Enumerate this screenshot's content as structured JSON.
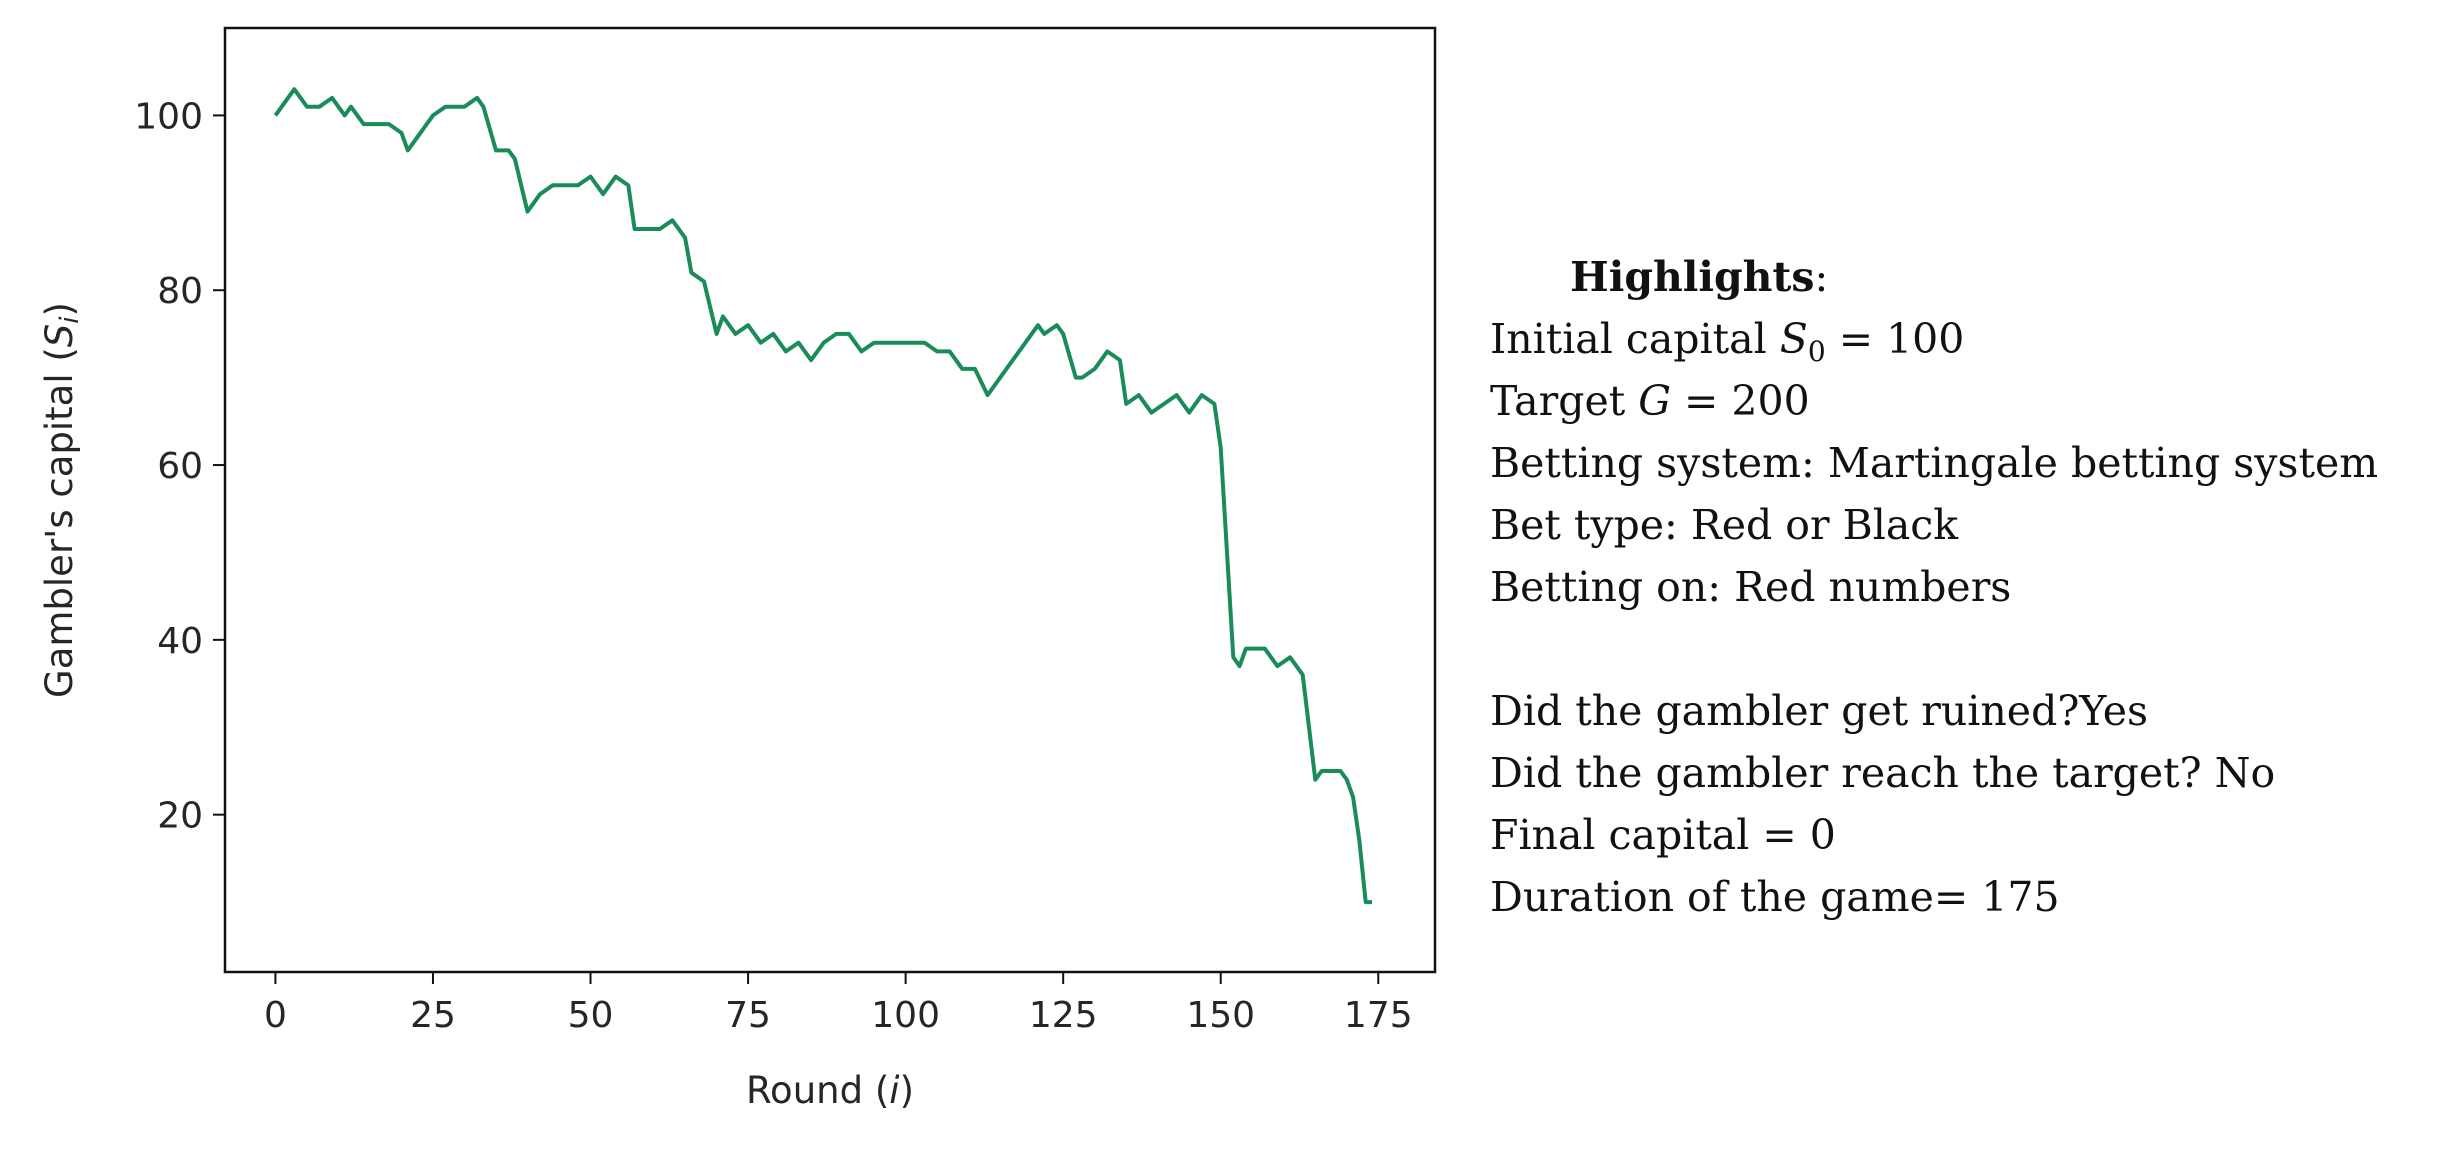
{
  "chart_data": {
    "type": "line",
    "xlabel": "Round (i)",
    "ylabel": "Gambler's capital (S_i)",
    "xlim": [
      -8,
      184
    ],
    "ylim": [
      2,
      110
    ],
    "xticks": [
      0,
      25,
      50,
      75,
      100,
      125,
      150,
      175
    ],
    "yticks": [
      20,
      40,
      60,
      80,
      100
    ],
    "grid": false,
    "line_color": "#1a8c5a",
    "series": [
      {
        "x": [
          0,
          3,
          5,
          7,
          9,
          11,
          12,
          14,
          15,
          17,
          18,
          20,
          21,
          23,
          25,
          27,
          28,
          30,
          32,
          33,
          35,
          37,
          38,
          40,
          42,
          44,
          46,
          48,
          50,
          52,
          54,
          56,
          57,
          59,
          61,
          63,
          65,
          66,
          68,
          70,
          71,
          73,
          75,
          77,
          79,
          81,
          83,
          85,
          87,
          89,
          91,
          93,
          95,
          97,
          99,
          101,
          103,
          105,
          107,
          109,
          111,
          113,
          115,
          117,
          119,
          121,
          122,
          124,
          125,
          127,
          128,
          130,
          132,
          134,
          135,
          137,
          139,
          141,
          143,
          145,
          147,
          149,
          150,
          151,
          152,
          153,
          154,
          155,
          157,
          159,
          161,
          163,
          164,
          165,
          166,
          167,
          169,
          170,
          171,
          172,
          173,
          174
        ],
        "y": [
          100,
          103,
          101,
          101,
          102,
          100,
          101,
          99,
          99,
          99,
          99,
          98,
          96,
          98,
          100,
          101,
          101,
          101,
          102,
          101,
          96,
          96,
          95,
          89,
          91,
          92,
          92,
          92,
          93,
          91,
          93,
          92,
          87,
          87,
          87,
          88,
          86,
          82,
          81,
          75,
          77,
          75,
          76,
          74,
          75,
          73,
          74,
          72,
          74,
          75,
          75,
          73,
          74,
          74,
          74,
          74,
          74,
          73,
          73,
          71,
          71,
          68,
          70,
          72,
          74,
          76,
          75,
          76,
          75,
          70,
          70,
          71,
          73,
          72,
          67,
          68,
          66,
          67,
          68,
          66,
          68,
          67,
          62,
          50,
          38,
          37,
          39,
          39,
          39,
          37,
          38,
          36,
          30,
          24,
          25,
          25,
          25,
          24,
          22,
          17,
          10,
          10
        ]
      }
    ]
  },
  "highlights": {
    "title": "Highlights",
    "initial_capital": {
      "prefix": "Initial capital ",
      "var": "S",
      "sub": "0",
      "rest": " = 100"
    },
    "target": {
      "prefix": "Target ",
      "var": "G",
      "rest": " = 200"
    },
    "betting_system": "Betting system: Martingale betting system",
    "bet_type": "Bet type: Red or Black",
    "betting_on": "Betting on: Red numbers",
    "ruined": "Did the gambler get ruined?Yes",
    "reached": "Did the gambler reach the target? No",
    "final_capital": "Final capital = 0",
    "duration": "Duration of the game= 175"
  }
}
